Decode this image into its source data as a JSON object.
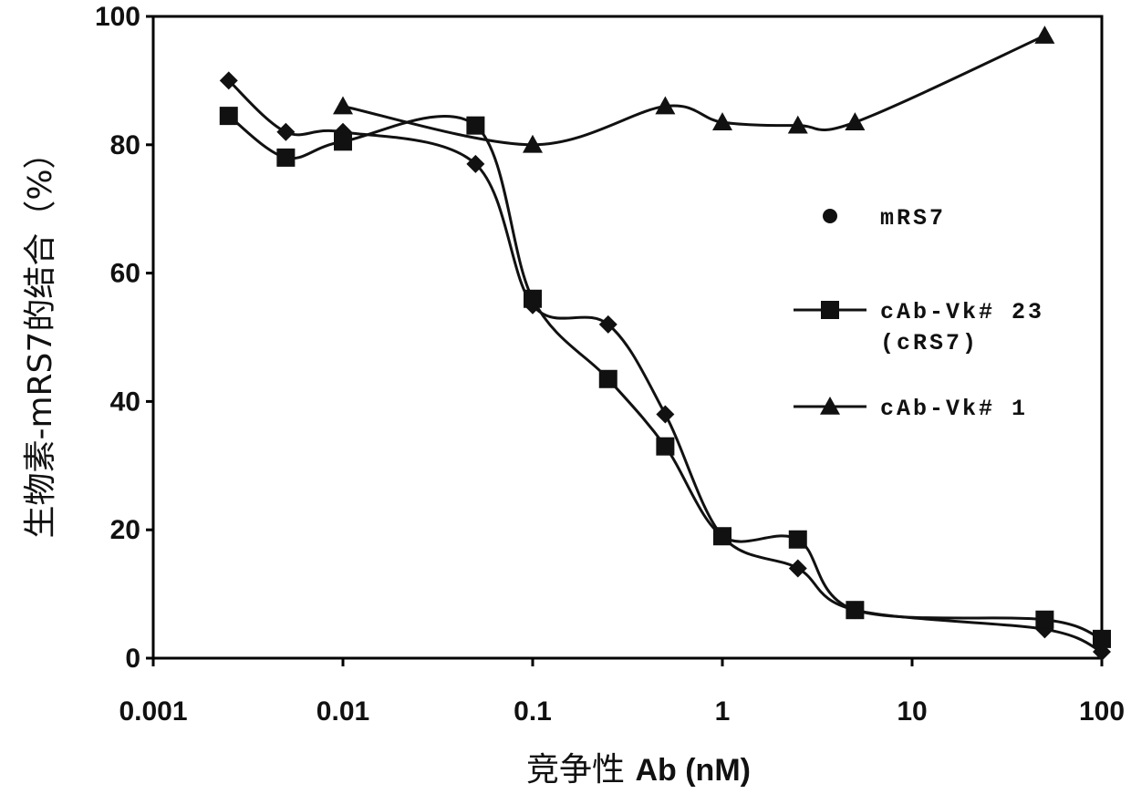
{
  "chart_data": {
    "type": "line",
    "xscale": "log",
    "xlim": [
      0.001,
      100
    ],
    "ylim": [
      0,
      100
    ],
    "x_ticks": [
      "0.001",
      "0.01",
      "0.1",
      "1",
      "10",
      "100"
    ],
    "x_tick_values": [
      0.001,
      0.01,
      0.1,
      1,
      10,
      100
    ],
    "y_ticks": [
      "0",
      "20",
      "40",
      "60",
      "80",
      "100"
    ],
    "y_tick_values": [
      0,
      20,
      40,
      60,
      80,
      100
    ],
    "xlabel": "竞争性 Ab (nM)",
    "ylabel": "生物素-mRS7的结合（%）",
    "grid": false,
    "legend_position": "right",
    "series": [
      {
        "name": "mRS7",
        "marker": "diamond",
        "x": [
          0.0025,
          0.005,
          0.01,
          0.05,
          0.1,
          0.25,
          0.5,
          1,
          2.5,
          5,
          50,
          100
        ],
        "y": [
          90,
          82,
          82,
          77,
          55,
          52,
          38,
          19,
          14,
          7.5,
          4.5,
          1
        ]
      },
      {
        "name": "cAb-Vk# 23\n(cRS7)",
        "marker": "square",
        "x": [
          0.0025,
          0.005,
          0.01,
          0.05,
          0.1,
          0.25,
          0.5,
          1,
          2.5,
          5,
          50,
          100
        ],
        "y": [
          84.5,
          78,
          80.5,
          83,
          56,
          43.5,
          33,
          19,
          18.5,
          7.5,
          6,
          3
        ]
      },
      {
        "name": "cAb-Vk# 1",
        "marker": "triangle",
        "x": [
          0.01,
          0.1,
          0.5,
          1,
          2.5,
          5,
          50
        ],
        "y": [
          86,
          80,
          86,
          83.5,
          83,
          83.5,
          97
        ]
      }
    ]
  }
}
